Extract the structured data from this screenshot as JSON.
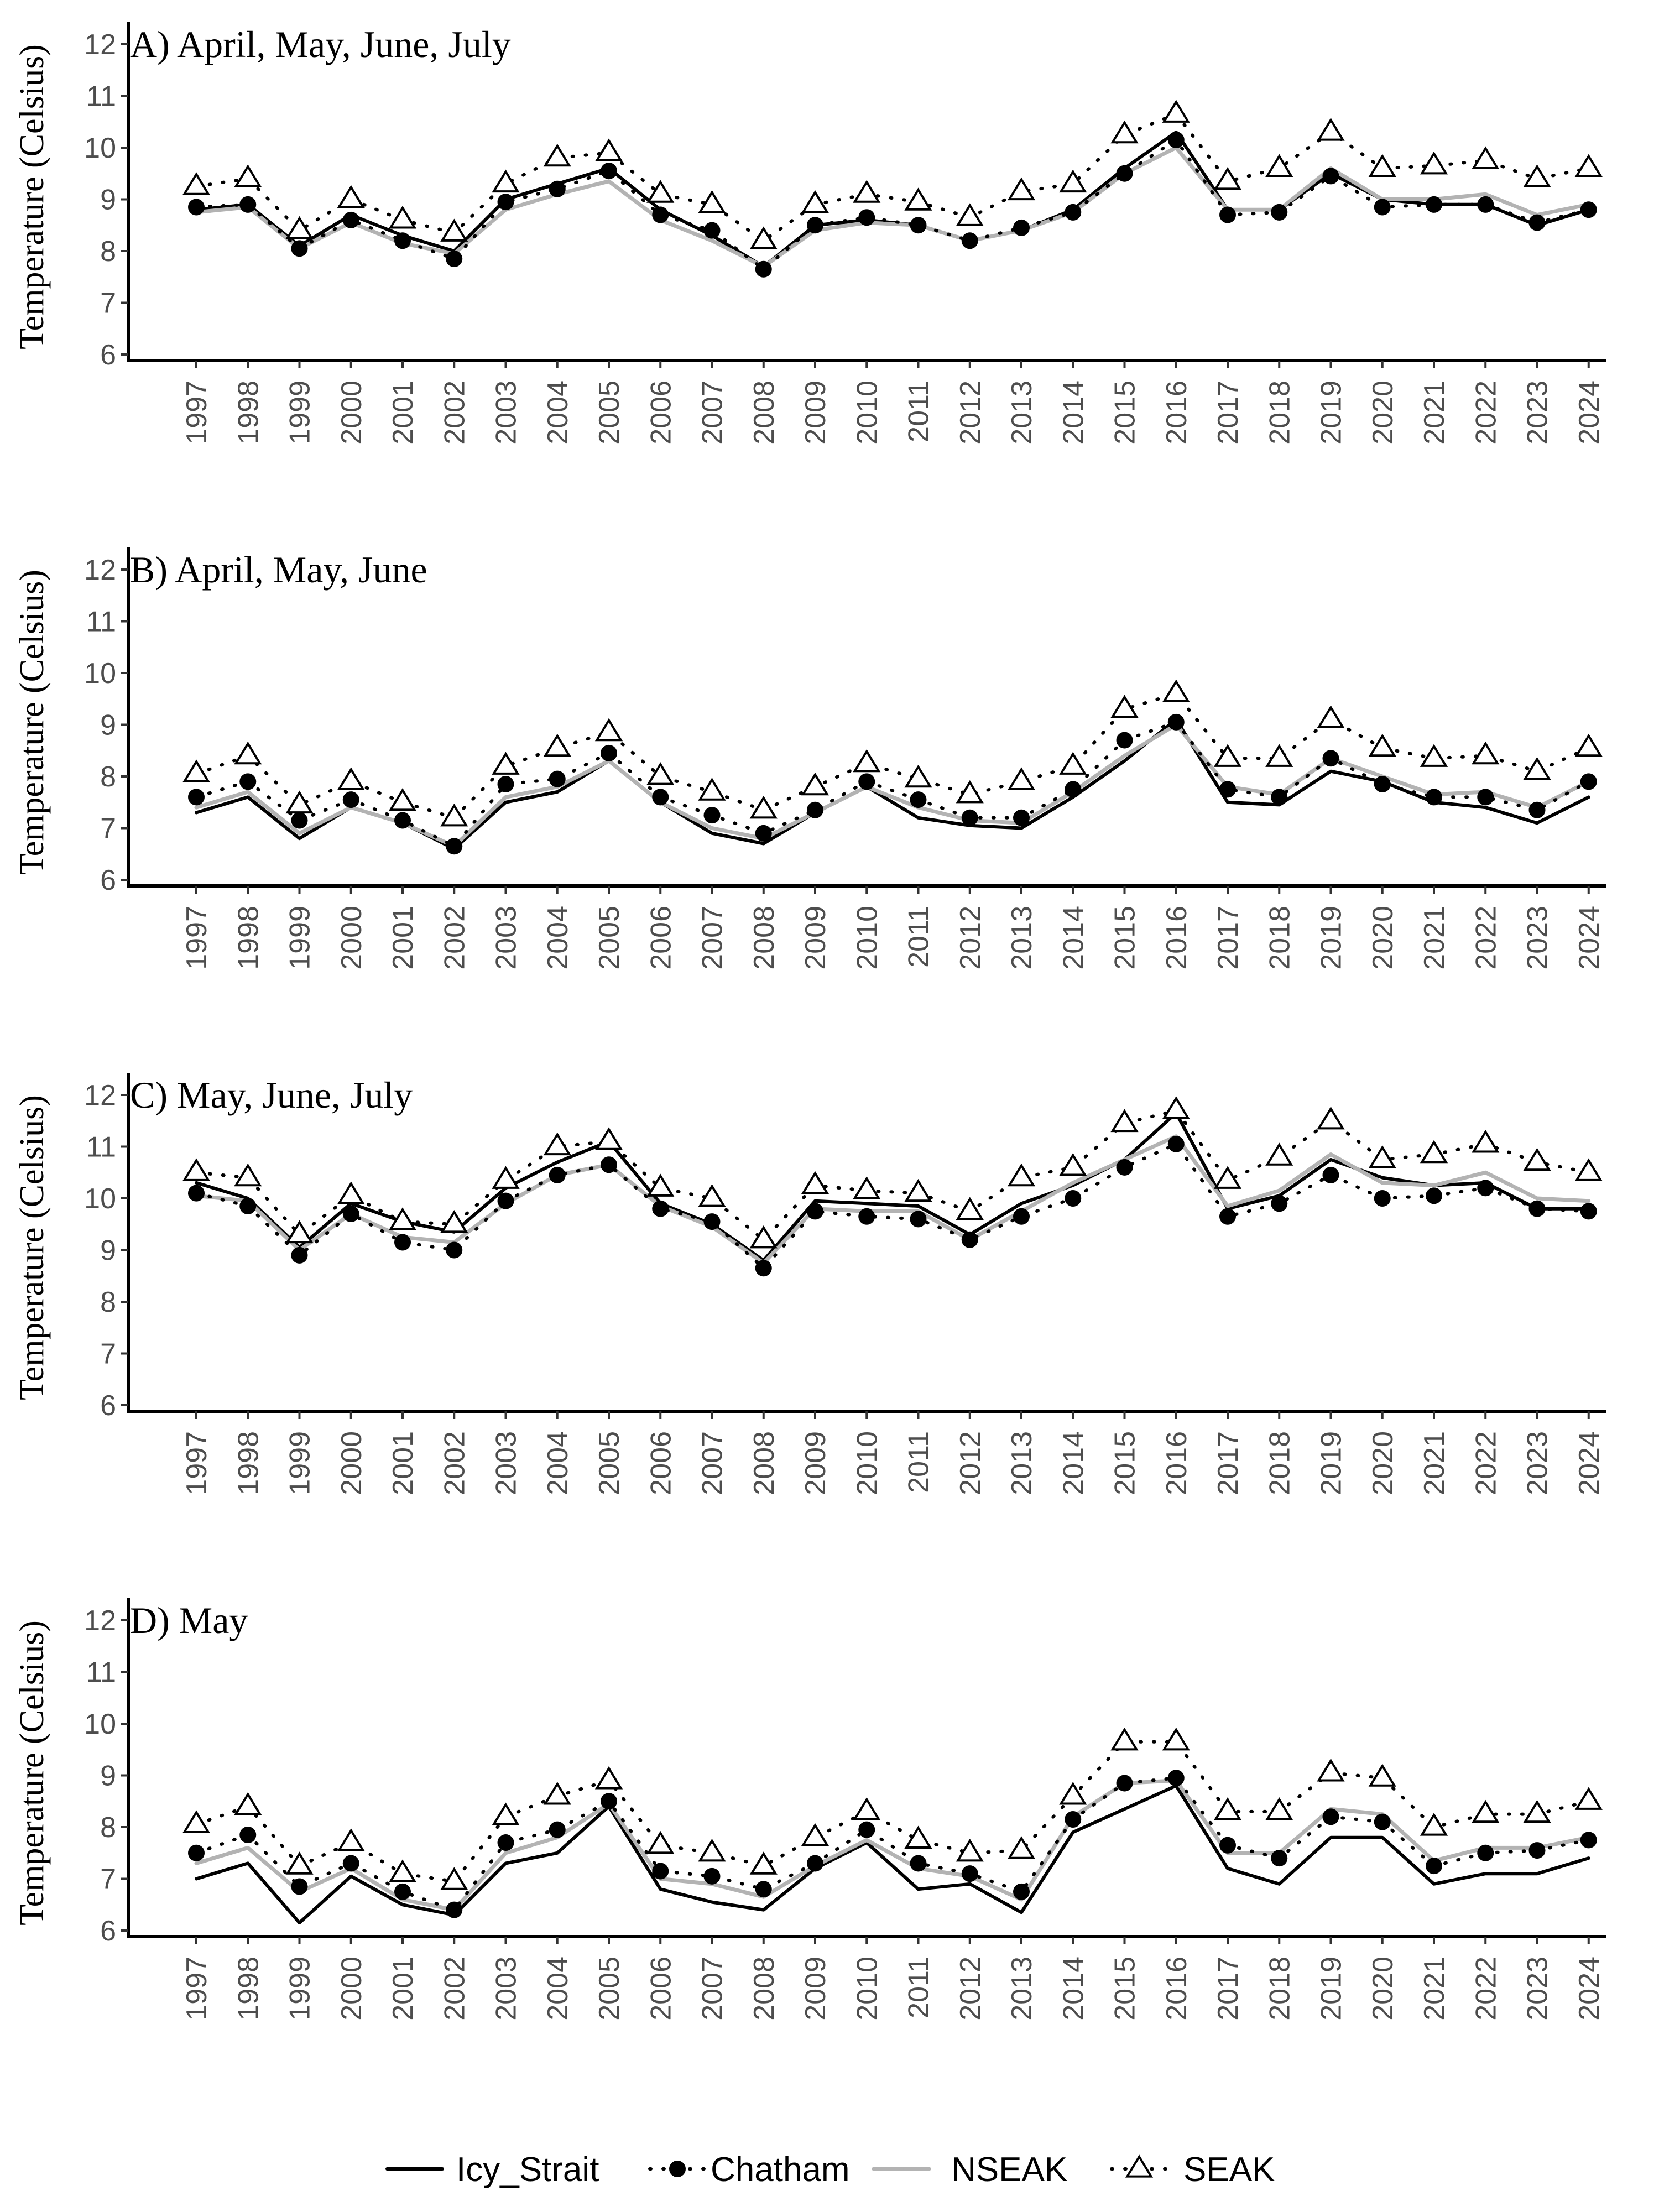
{
  "chart_data": {
    "type": "line",
    "ylabel": "Temperature (Celsius)",
    "ylim": [
      6,
      12
    ],
    "yticks": [
      "6",
      "7",
      "8",
      "9",
      "10",
      "11",
      "12"
    ],
    "x": [
      "1997",
      "1998",
      "1999",
      "2000",
      "2001",
      "2002",
      "2003",
      "2004",
      "2005",
      "2006",
      "2007",
      "2008",
      "2009",
      "2010",
      "2011",
      "2012",
      "2013",
      "2014",
      "2015",
      "2016",
      "2017",
      "2018",
      "2019",
      "2020",
      "2021",
      "2022",
      "2023",
      "2024"
    ],
    "legend": {
      "placement": "bottom",
      "labels": [
        "Icy_Strait",
        "Chatham",
        "NSEAK",
        "SEAK"
      ]
    },
    "colors": {
      "Icy_Strait": "#000000",
      "Chatham": "#000000",
      "NSEAK": "#b3b3b3",
      "SEAK": "#000000"
    },
    "panels": [
      {
        "title": "A) April, May, June, July",
        "series": [
          {
            "name": "Icy_Strait",
            "values": [
              8.8,
              8.9,
              8.1,
              8.7,
              8.3,
              8.0,
              9.0,
              9.3,
              9.6,
              8.8,
              8.3,
              7.7,
              8.5,
              8.6,
              8.5,
              8.2,
              8.4,
              8.8,
              9.6,
              10.3,
              8.8,
              8.8,
              9.5,
              9.0,
              8.9,
              8.9,
              8.5,
              8.8
            ]
          },
          {
            "name": "Chatham",
            "values": [
              8.85,
              8.9,
              8.05,
              8.6,
              8.2,
              7.85,
              8.95,
              9.2,
              9.55,
              8.7,
              8.4,
              7.65,
              8.5,
              8.65,
              8.5,
              8.2,
              8.45,
              8.75,
              9.5,
              10.15,
              8.7,
              8.75,
              9.45,
              8.85,
              8.9,
              8.9,
              8.55,
              8.8
            ]
          },
          {
            "name": "NSEAK",
            "values": [
              8.75,
              8.85,
              8.05,
              8.55,
              8.15,
              7.95,
              8.8,
              9.1,
              9.35,
              8.6,
              8.2,
              7.7,
              8.4,
              8.55,
              8.5,
              8.2,
              8.4,
              8.75,
              9.5,
              10.0,
              8.8,
              8.8,
              9.6,
              9.0,
              9.0,
              9.1,
              8.7,
              8.9
            ]
          },
          {
            "name": "SEAK",
            "values": [
              9.25,
              9.4,
              8.4,
              9.0,
              8.6,
              8.35,
              9.3,
              9.8,
              9.9,
              9.1,
              8.9,
              8.2,
              8.9,
              9.1,
              8.95,
              8.65,
              9.15,
              9.3,
              10.25,
              10.65,
              9.35,
              9.6,
              10.3,
              9.6,
              9.65,
              9.75,
              9.4,
              9.6
            ]
          }
        ]
      },
      {
        "title": "B) April, May, June",
        "series": [
          {
            "name": "Icy_Strait",
            "values": [
              7.3,
              7.6,
              6.8,
              7.4,
              7.1,
              6.6,
              7.5,
              7.7,
              8.3,
              7.5,
              6.9,
              6.7,
              7.3,
              7.8,
              7.2,
              7.05,
              7.0,
              7.6,
              8.3,
              9.1,
              7.5,
              7.45,
              8.1,
              7.9,
              7.5,
              7.4,
              7.1,
              7.6
            ]
          },
          {
            "name": "Chatham",
            "values": [
              7.6,
              7.9,
              7.15,
              7.55,
              7.15,
              6.65,
              7.85,
              7.95,
              8.45,
              7.6,
              7.25,
              6.9,
              7.35,
              7.9,
              7.55,
              7.2,
              7.2,
              7.75,
              8.7,
              9.05,
              7.75,
              7.6,
              8.35,
              7.85,
              7.6,
              7.6,
              7.35,
              7.9
            ]
          },
          {
            "name": "NSEAK",
            "values": [
              7.4,
              7.7,
              6.9,
              7.4,
              7.1,
              6.65,
              7.6,
              7.8,
              8.3,
              7.5,
              7.0,
              6.8,
              7.3,
              7.8,
              7.4,
              7.15,
              7.1,
              7.7,
              8.4,
              9.0,
              7.8,
              7.65,
              8.35,
              8.0,
              7.65,
              7.7,
              7.4,
              7.9
            ]
          },
          {
            "name": "SEAK",
            "values": [
              8.05,
              8.4,
              7.45,
              7.9,
              7.5,
              7.2,
              8.2,
              8.55,
              8.85,
              8.0,
              7.7,
              7.35,
              7.8,
              8.25,
              7.95,
              7.65,
              7.9,
              8.2,
              9.3,
              9.6,
              8.35,
              8.35,
              9.1,
              8.55,
              8.35,
              8.4,
              8.1,
              8.55
            ]
          }
        ]
      },
      {
        "title": "C) May, June, July",
        "series": [
          {
            "name": "Icy_Strait",
            "values": [
              10.3,
              10.0,
              9.05,
              9.9,
              9.55,
              9.35,
              10.2,
              10.7,
              11.1,
              9.9,
              9.5,
              8.8,
              9.95,
              9.9,
              9.85,
              9.3,
              9.9,
              10.25,
              10.75,
              11.65,
              9.8,
              10.05,
              10.75,
              10.4,
              10.25,
              10.3,
              9.8,
              9.8
            ]
          },
          {
            "name": "Chatham",
            "values": [
              10.1,
              9.85,
              8.9,
              9.7,
              9.15,
              9.0,
              9.95,
              10.45,
              10.65,
              9.8,
              9.55,
              8.65,
              9.75,
              9.65,
              9.6,
              9.2,
              9.65,
              10.0,
              10.6,
              11.05,
              9.65,
              9.9,
              10.45,
              10.0,
              10.05,
              10.2,
              9.8,
              9.75
            ]
          },
          {
            "name": "NSEAK",
            "values": [
              10.05,
              9.95,
              9.0,
              9.7,
              9.25,
              9.15,
              9.9,
              10.45,
              10.65,
              9.85,
              9.45,
              8.75,
              9.8,
              9.75,
              9.75,
              9.2,
              9.75,
              10.3,
              10.75,
              11.2,
              9.85,
              10.15,
              10.85,
              10.3,
              10.25,
              10.5,
              10.0,
              9.95
            ]
          },
          {
            "name": "SEAK",
            "values": [
              10.5,
              10.4,
              9.3,
              10.05,
              9.55,
              9.5,
              10.35,
              11.0,
              11.1,
              10.2,
              10.0,
              9.2,
              10.25,
              10.15,
              10.1,
              9.75,
              10.4,
              10.6,
              11.45,
              11.7,
              10.35,
              10.8,
              11.5,
              10.75,
              10.85,
              11.05,
              10.7,
              10.5
            ]
          }
        ]
      },
      {
        "title": "D) May",
        "series": [
          {
            "name": "Icy_Strait",
            "values": [
              7.0,
              7.3,
              6.15,
              7.05,
              6.5,
              6.3,
              7.3,
              7.5,
              8.4,
              6.8,
              6.55,
              6.4,
              7.2,
              7.7,
              6.8,
              6.9,
              6.35,
              7.9,
              8.35,
              8.8,
              7.2,
              6.9,
              7.8,
              7.8,
              6.9,
              7.1,
              7.1,
              7.4
            ]
          },
          {
            "name": "Chatham",
            "values": [
              7.5,
              7.85,
              6.85,
              7.3,
              6.75,
              6.4,
              7.7,
              7.95,
              8.5,
              7.15,
              7.05,
              6.8,
              7.3,
              7.95,
              7.3,
              7.1,
              6.75,
              8.15,
              8.85,
              8.95,
              7.65,
              7.4,
              8.2,
              8.1,
              7.25,
              7.5,
              7.55,
              7.75
            ]
          },
          {
            "name": "NSEAK",
            "values": [
              7.3,
              7.6,
              6.75,
              7.2,
              6.6,
              6.4,
              7.5,
              7.8,
              8.45,
              7.0,
              6.9,
              6.65,
              7.25,
              7.75,
              7.2,
              7.05,
              6.6,
              8.2,
              8.85,
              8.9,
              7.5,
              7.5,
              8.35,
              8.25,
              7.35,
              7.6,
              7.6,
              7.8
            ]
          },
          {
            "name": "SEAK",
            "values": [
              8.05,
              8.4,
              7.25,
              7.7,
              7.1,
              6.95,
              8.2,
              8.6,
              8.9,
              7.65,
              7.5,
              7.25,
              7.8,
              8.3,
              7.75,
              7.5,
              7.55,
              8.6,
              9.65,
              9.65,
              8.3,
              8.3,
              9.05,
              8.95,
              8.0,
              8.25,
              8.25,
              8.5
            ]
          }
        ]
      }
    ]
  }
}
